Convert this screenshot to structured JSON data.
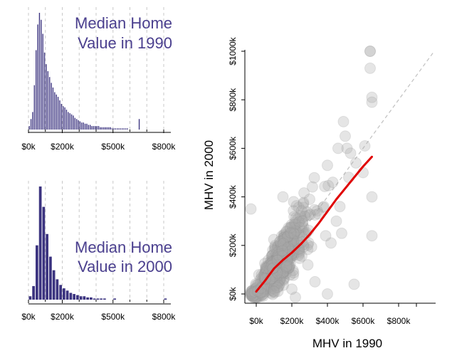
{
  "colors": {
    "bar": "#3c3480",
    "title": "#4a3f8e",
    "point": "#aaaaaa",
    "trend": "#e00000",
    "grid": "#c8c8c8"
  },
  "chart_data": [
    {
      "type": "bar",
      "title": [
        "Median Home",
        "Value in 1990"
      ],
      "x_tick_labels": [
        "$0k",
        "$200k",
        "$500k",
        "$800k"
      ],
      "x_tick_values": [
        0,
        200,
        500,
        800
      ],
      "xlim": [
        0,
        800
      ],
      "grid": true,
      "bin_width_k": 10,
      "bin_starts_k": [
        0,
        10,
        20,
        30,
        40,
        50,
        60,
        70,
        80,
        90,
        100,
        110,
        120,
        130,
        140,
        150,
        160,
        170,
        180,
        190,
        200,
        210,
        220,
        230,
        240,
        250,
        260,
        270,
        280,
        290,
        300,
        310,
        320,
        330,
        340,
        350,
        360,
        370,
        380,
        390,
        400,
        410,
        420,
        430,
        440,
        450,
        460,
        470,
        480,
        490,
        500,
        510,
        520,
        530,
        540,
        550,
        560,
        570,
        580,
        590,
        600,
        610,
        620,
        630,
        640,
        650
      ],
      "values": [
        3,
        9,
        15,
        38,
        68,
        90,
        100,
        94,
        82,
        66,
        56,
        50,
        45,
        40,
        36,
        32,
        30,
        28,
        25,
        22,
        20,
        19,
        17,
        15,
        14,
        13,
        12,
        10,
        9,
        8,
        7,
        6,
        6,
        5,
        5,
        4,
        4,
        3,
        3,
        3,
        3,
        3,
        2,
        2,
        2,
        2,
        2,
        2,
        2,
        1,
        1,
        1,
        1,
        1,
        1,
        1,
        1,
        1,
        1,
        0,
        0,
        0,
        0,
        0,
        0,
        9
      ]
    },
    {
      "type": "bar",
      "title": [
        "Median Home",
        "Value in 2000"
      ],
      "x_tick_labels": [
        "$0k",
        "$200k",
        "$500k",
        "$800k"
      ],
      "x_tick_values": [
        0,
        200,
        500,
        800
      ],
      "xlim": [
        0,
        800
      ],
      "grid": true,
      "bin_width_k": 20,
      "bin_starts_k": [
        0,
        20,
        40,
        60,
        80,
        100,
        120,
        140,
        160,
        180,
        200,
        220,
        240,
        260,
        280,
        300,
        320,
        340,
        360,
        380,
        400,
        420,
        440,
        460,
        480,
        500,
        520,
        540,
        560,
        580,
        600,
        620,
        640,
        660,
        680,
        700,
        720,
        740,
        760,
        780,
        800
      ],
      "values": [
        3,
        12,
        48,
        100,
        82,
        58,
        38,
        26,
        18,
        13,
        10,
        8,
        6,
        5,
        4,
        3,
        3,
        2,
        2,
        1,
        1,
        1,
        1,
        0,
        0,
        1,
        0,
        0,
        0,
        0,
        0,
        0,
        0,
        0,
        0,
        0,
        0,
        0,
        0,
        0,
        1
      ]
    },
    {
      "type": "scatter",
      "xlabel": "MHV in 1990",
      "ylabel": "MHV in 2000",
      "x_tick_labels": [
        "$0k",
        "$200k",
        "$400k",
        "$600k",
        "$800k"
      ],
      "x_tick_values": [
        0,
        200,
        400,
        600,
        800
      ],
      "y_tick_labels": [
        "$0k",
        "$200k",
        "$400k",
        "$600k",
        "$800k",
        "$1000k"
      ],
      "y_tick_values": [
        0,
        200,
        400,
        600,
        800,
        1000
      ],
      "xlim": [
        -60,
        1000
      ],
      "ylim": [
        -20,
        1000
      ],
      "reference_line": "y = x (dashed)",
      "trend_line": {
        "name": "smoothed fit",
        "x": [
          0,
          50,
          100,
          150,
          200,
          250,
          300,
          350,
          400,
          450,
          500,
          550,
          600,
          650
        ],
        "y": [
          10,
          55,
          105,
          140,
          170,
          205,
          245,
          290,
          340,
          390,
          435,
          480,
          525,
          565
        ]
      },
      "highlighted_points": [
        {
          "x": -30,
          "y": 350
        },
        {
          "x": 150,
          "y": 400
        },
        {
          "x": 210,
          "y": 380
        },
        {
          "x": 300,
          "y": 390
        },
        {
          "x": 400,
          "y": 530
        },
        {
          "x": 430,
          "y": 460
        },
        {
          "x": 460,
          "y": 600
        },
        {
          "x": 490,
          "y": 710
        },
        {
          "x": 500,
          "y": 650
        },
        {
          "x": 510,
          "y": 600
        },
        {
          "x": 530,
          "y": 580
        },
        {
          "x": 600,
          "y": 500
        },
        {
          "x": 610,
          "y": 610
        },
        {
          "x": 640,
          "y": 930
        },
        {
          "x": 640,
          "y": 1000
        },
        {
          "x": 640,
          "y": 1000
        },
        {
          "x": 650,
          "y": 810
        },
        {
          "x": 650,
          "y": 790
        },
        {
          "x": 650,
          "y": 400
        },
        {
          "x": 650,
          "y": 240
        },
        {
          "x": 550,
          "y": 40
        },
        {
          "x": 400,
          "y": 0
        },
        {
          "x": 330,
          "y": 50
        },
        {
          "x": 290,
          "y": 120
        },
        {
          "x": 480,
          "y": 250
        },
        {
          "x": 450,
          "y": 300
        },
        {
          "x": 470,
          "y": 360
        },
        {
          "x": 380,
          "y": 360
        },
        {
          "x": 350,
          "y": 330
        },
        {
          "x": 260,
          "y": 300
        },
        {
          "x": 420,
          "y": 210
        },
        {
          "x": 390,
          "y": 240
        },
        {
          "x": 100,
          "y": 10
        },
        {
          "x": 200,
          "y": 20
        },
        {
          "x": 520,
          "y": 480
        },
        {
          "x": 560,
          "y": 540
        }
      ],
      "cloud": {
        "n": 650,
        "x_center": 120,
        "x_spread": 85,
        "slope": 1.0,
        "noise": 40,
        "seed": 7
      }
    }
  ]
}
